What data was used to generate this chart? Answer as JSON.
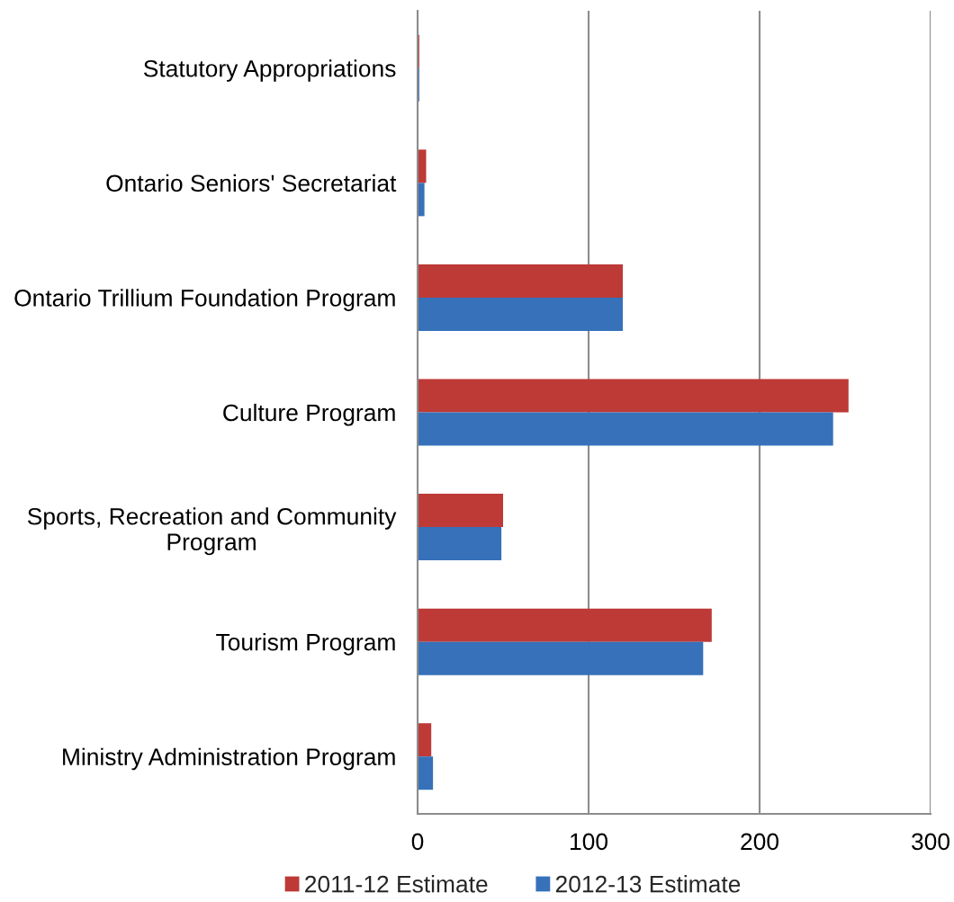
{
  "chart_data": {
    "type": "bar",
    "orientation": "horizontal",
    "categories": [
      "Statutory Appropriations",
      "Ontario Seniors' Secretariat",
      "Ontario Trillium Foundation Program",
      "Culture Program",
      "Sports, Recreation and Community\nProgram",
      "Tourism Program",
      "Ministry Administration Program"
    ],
    "series": [
      {
        "name": "2011-12 Estimate",
        "color": "#bd3a36",
        "values": [
          1,
          5,
          120,
          252,
          50,
          172,
          8
        ]
      },
      {
        "name": "2012-13 Estimate",
        "color": "#3671ba",
        "values": [
          1,
          4,
          120,
          243,
          49,
          167,
          9
        ]
      }
    ],
    "xlim": [
      0,
      300
    ],
    "xticks": [
      0,
      100,
      200,
      300
    ],
    "grid": "x",
    "legend": "bottom"
  }
}
